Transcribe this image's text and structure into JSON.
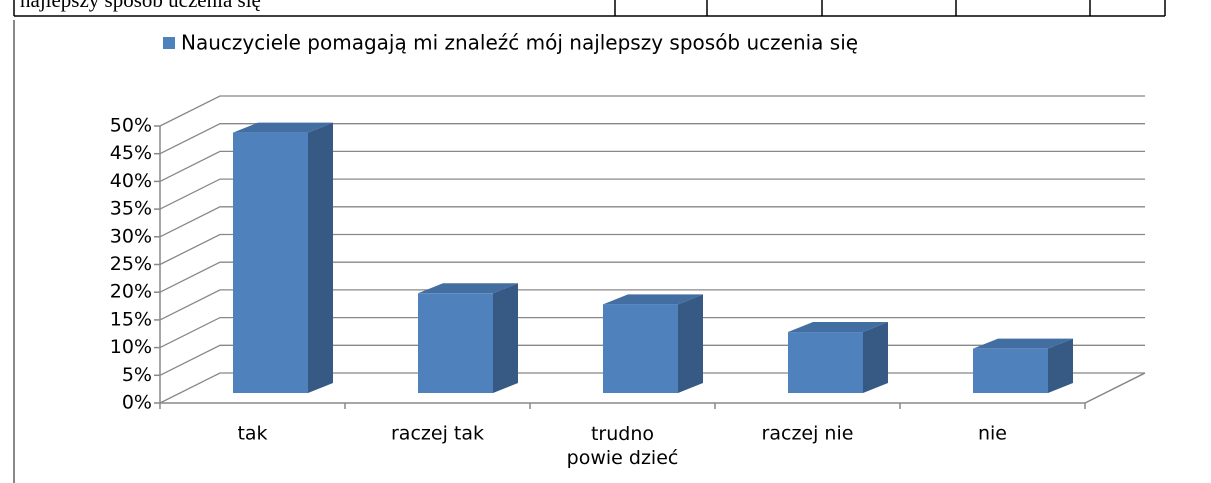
{
  "table_fragment": {
    "cells": [
      "najlepszy sposób uczenia się"
    ]
  },
  "chart_data": {
    "type": "bar3d",
    "categories": [
      "tak",
      "raczej tak",
      "trudno\npowie dzieć",
      "raczej nie",
      "nie"
    ],
    "series": [
      {
        "name": "Nauczyciele pomagają mi znaleźć mój najlepszy sposób uczenia się",
        "color": "#4f81bd",
        "values": [
          47,
          18,
          16,
          11,
          8
        ]
      }
    ],
    "ylim": [
      0,
      50
    ],
    "yticks": [
      {
        "value": 0,
        "label": "0%"
      },
      {
        "value": 5,
        "label": "5%"
      },
      {
        "value": 10,
        "label": "10%"
      },
      {
        "value": 15,
        "label": "15%"
      },
      {
        "value": 20,
        "label": "20%"
      },
      {
        "value": 25,
        "label": "25%"
      },
      {
        "value": 30,
        "label": "30%"
      },
      {
        "value": 35,
        "label": "35%"
      },
      {
        "value": 40,
        "label": "40%"
      },
      {
        "value": 45,
        "label": "45%"
      },
      {
        "value": 50,
        "label": "50%"
      }
    ],
    "grid": true,
    "legend": "top"
  }
}
